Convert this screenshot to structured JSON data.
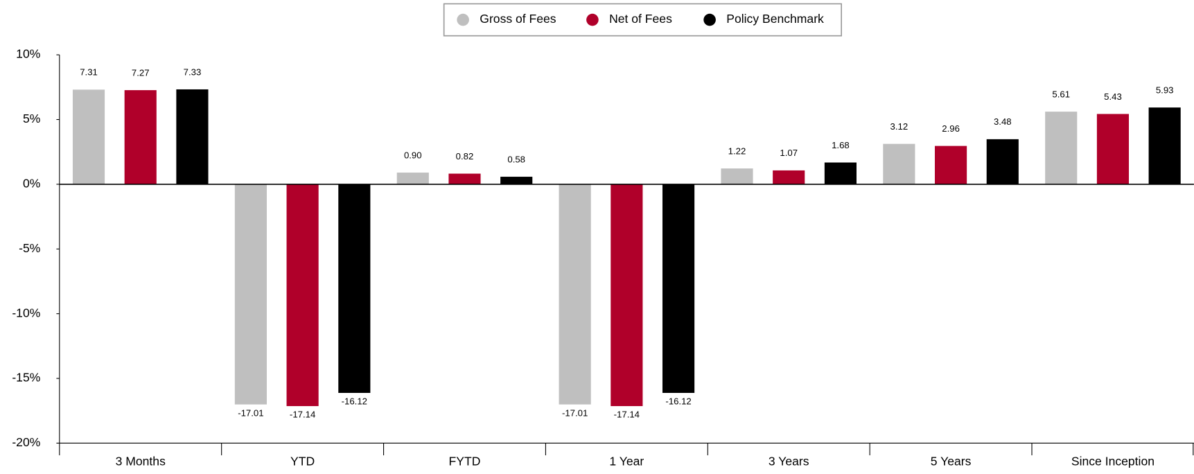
{
  "chart_data": {
    "type": "bar",
    "categories": [
      "3 Months",
      "YTD",
      "FYTD",
      "1 Year",
      "3 Years",
      "5 Years",
      "Since Inception"
    ],
    "series": [
      {
        "name": "Gross of Fees",
        "color": "#bfbfbf",
        "values": [
          7.31,
          -17.01,
          0.9,
          -17.01,
          1.22,
          3.12,
          5.61
        ],
        "value_labels": [
          "7.31",
          "-17.01",
          "0.90",
          "-17.01",
          "1.22",
          "3.12",
          "5.61"
        ]
      },
      {
        "name": "Net of Fees",
        "color": "#b0002a",
        "values": [
          7.27,
          -17.14,
          0.82,
          -17.14,
          1.07,
          2.96,
          5.43
        ],
        "value_labels": [
          "7.27",
          "-17.14",
          "0.82",
          "-17.14",
          "1.07",
          "2.96",
          "5.43"
        ]
      },
      {
        "name": "Policy Benchmark",
        "color": "#000000",
        "values": [
          7.33,
          -16.12,
          0.58,
          -16.12,
          1.68,
          3.48,
          5.93
        ],
        "value_labels": [
          "7.33",
          "-16.12",
          "0.58",
          "-16.12",
          "1.68",
          "3.48",
          "5.93"
        ]
      }
    ],
    "ylim": [
      -20,
      10
    ],
    "yticks": [
      {
        "value": 10,
        "label": "10%"
      },
      {
        "value": 5,
        "label": "5%"
      },
      {
        "value": 0,
        "label": "0%"
      },
      {
        "value": -5,
        "label": "-5%"
      },
      {
        "value": -10,
        "label": "-10%"
      },
      {
        "value": -15,
        "label": "-15%"
      },
      {
        "value": -20,
        "label": "-20%"
      }
    ],
    "legend": "top"
  }
}
